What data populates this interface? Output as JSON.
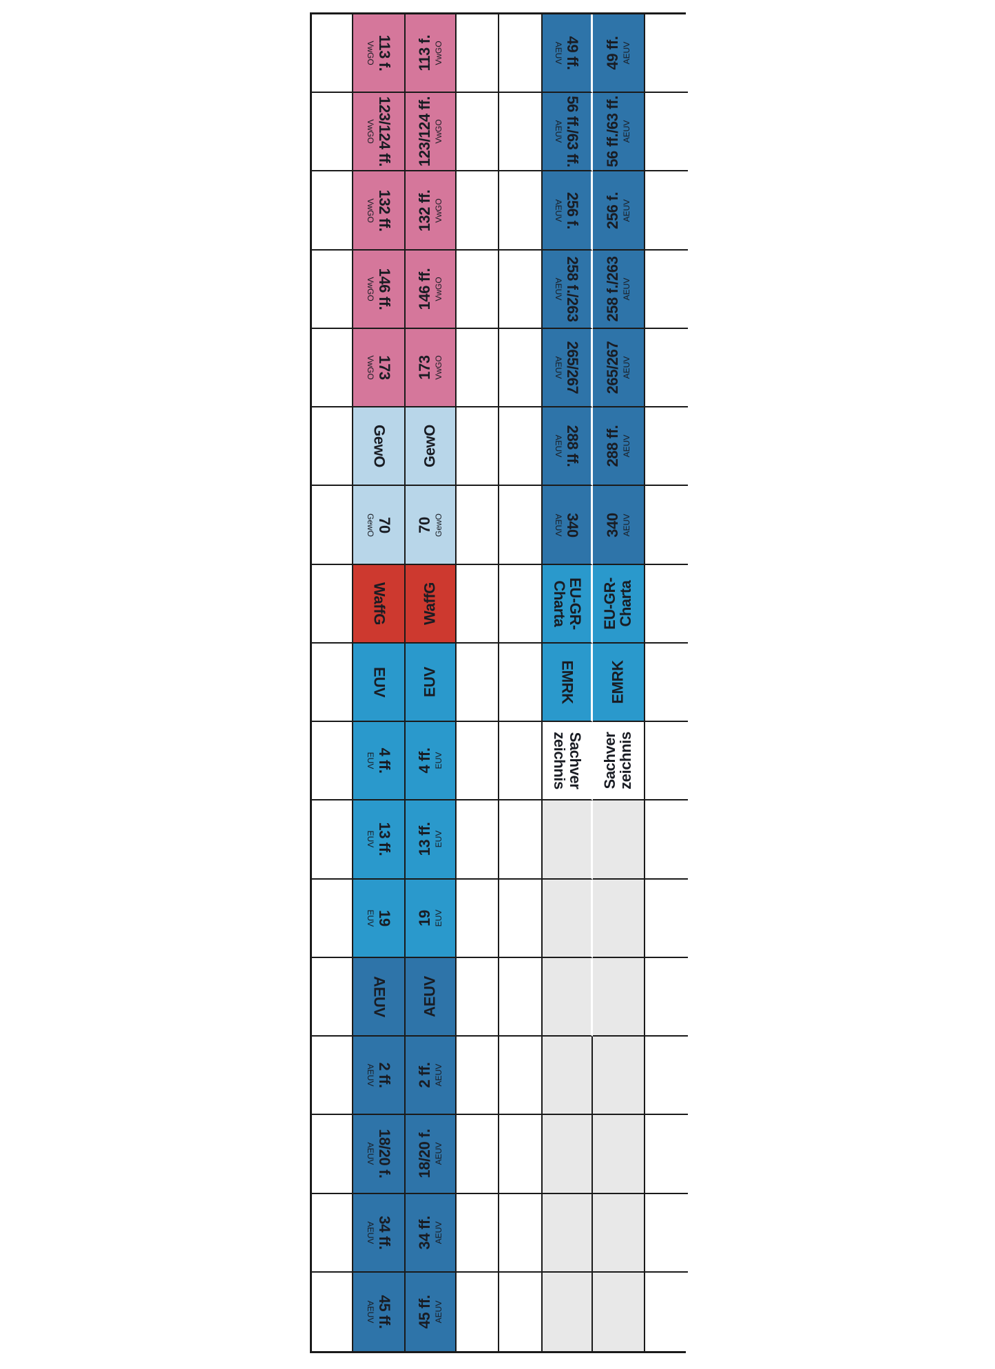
{
  "colors": {
    "pink": "#d5779b",
    "light_blue": "#b8d6e9",
    "red": "#cd392f",
    "bright_blue": "#2a99cc",
    "dark_blue": "#2e74a9",
    "gray": "#e8e8e8",
    "white": "#ffffff",
    "grid_line": "#1a1a1a",
    "text": "#191c23"
  },
  "rows": [
    {
      "left": {
        "label": "113 f.",
        "sub": "VwGO",
        "color": "pink"
      },
      "right": {
        "label": "49 ff.",
        "sub": "AEUV",
        "color": "dark_blue"
      }
    },
    {
      "left": {
        "label": "123/124 ff.",
        "sub": "VwGO",
        "color": "pink"
      },
      "right": {
        "label": "56 ff./63 ff.",
        "sub": "AEUV",
        "color": "dark_blue"
      }
    },
    {
      "left": {
        "label": "132 ff.",
        "sub": "VwGO",
        "color": "pink"
      },
      "right": {
        "label": "256 f.",
        "sub": "AEUV",
        "color": "dark_blue"
      }
    },
    {
      "left": {
        "label": "146 ff.",
        "sub": "VwGO",
        "color": "pink"
      },
      "right": {
        "label": "258 f./263",
        "sub": "AEUV",
        "color": "dark_blue"
      }
    },
    {
      "left": {
        "label": "173",
        "sub": "VwGO",
        "color": "pink"
      },
      "right": {
        "label": "265/267",
        "sub": "AEUV",
        "color": "dark_blue"
      }
    },
    {
      "left": {
        "label": "GewO",
        "color": "light_blue"
      },
      "right": {
        "label": "288 ff.",
        "sub": "AEUV",
        "color": "dark_blue"
      }
    },
    {
      "left": {
        "label": "70",
        "sub": "GewO",
        "color": "light_blue"
      },
      "right": {
        "label": "340",
        "sub": "AEUV",
        "color": "dark_blue"
      }
    },
    {
      "left": {
        "label": "WaffG",
        "color": "red"
      },
      "right": {
        "label": "EU-GR-",
        "label2": "Charta",
        "color": "bright_blue"
      }
    },
    {
      "left": {
        "label": "EUV",
        "color": "bright_blue"
      },
      "right": {
        "label": "EMRK",
        "color": "bright_blue"
      }
    },
    {
      "left": {
        "label": "4 ff.",
        "sub": "EUV",
        "color": "bright_blue"
      },
      "right": {
        "label": "Sachver",
        "label2": "zeichnis",
        "color": "white"
      }
    },
    {
      "left": {
        "label": "13 ff.",
        "sub": "EUV",
        "color": "bright_blue"
      },
      "right": {
        "color": "gray"
      }
    },
    {
      "left": {
        "label": "19",
        "sub": "EUV",
        "color": "bright_blue"
      },
      "right": {
        "color": "gray"
      }
    },
    {
      "left": {
        "label": "AEUV",
        "color": "dark_blue"
      },
      "right": {
        "color": "gray"
      }
    },
    {
      "left": {
        "label": "2 ff.",
        "sub": "AEUV",
        "color": "dark_blue"
      },
      "right": {
        "color": "gray"
      }
    },
    {
      "left": {
        "label": "18/20 f.",
        "sub": "AEUV",
        "color": "dark_blue"
      },
      "right": {
        "color": "gray"
      }
    },
    {
      "left": {
        "label": "34 ff.",
        "sub": "AEUV",
        "color": "dark_blue"
      },
      "right": {
        "color": "gray"
      }
    },
    {
      "left": {
        "label": "45 ff.",
        "sub": "AEUV",
        "color": "dark_blue"
      },
      "right": {
        "color": "gray"
      }
    }
  ]
}
